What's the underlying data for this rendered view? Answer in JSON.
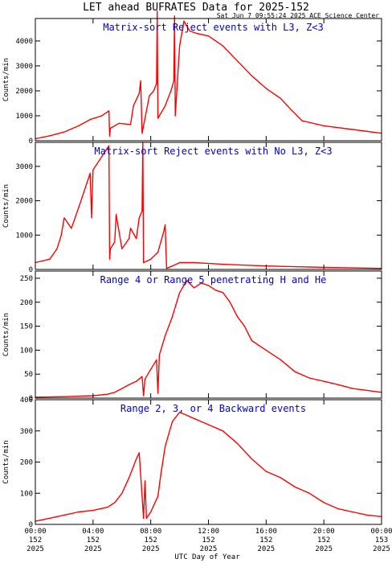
{
  "header": {
    "title": "LET ahead BUFRATES Data for 2025-152",
    "timestamp": "Sat Jun  7 09:55:24 2025 ACE Science Center"
  },
  "colors": {
    "series": "#ff0000",
    "panel_title": "#0000dd",
    "axes": "#000000",
    "background": "#ffffff"
  },
  "chart_data": [
    {
      "type": "line",
      "title": "Matrix-sort Reject events with L3, Z<3",
      "ylabel": "Counts/min",
      "xlim": [
        0,
        24
      ],
      "ylim": [
        0,
        4900
      ],
      "yticks": [
        0,
        1000,
        2000,
        3000,
        4000
      ],
      "grid": false,
      "series": [
        {
          "x": [
            0,
            1,
            2,
            3,
            3.8,
            4.6,
            5.1,
            5.15,
            5.2,
            5.8,
            6.6,
            6.8,
            7.2,
            7.3,
            7.4,
            7.9,
            8.2,
            8.4,
            8.45,
            8.5,
            8.8,
            9.0,
            9.4,
            9.6,
            9.65,
            9.7,
            10.0,
            10.3,
            10.7,
            11.2,
            12.0,
            13.0,
            14.0,
            15.0,
            16.0,
            17.0,
            17.8,
            18.5,
            20.0,
            22.0,
            24.0
          ],
          "values": [
            80,
            200,
            350,
            600,
            850,
            1000,
            1200,
            180,
            500,
            700,
            650,
            1400,
            1900,
            2400,
            300,
            1800,
            2000,
            2300,
            5200,
            900,
            1200,
            1400,
            2000,
            2400,
            5000,
            1000,
            3800,
            4800,
            4400,
            4300,
            4200,
            3800,
            3200,
            2600,
            2100,
            1700,
            1200,
            800,
            600,
            450,
            300
          ]
        }
      ]
    },
    {
      "type": "line",
      "title": "Matrix-sort Reject events with No L3, Z<3",
      "ylabel": "Counts/min",
      "xlim": [
        0,
        24
      ],
      "ylim": [
        0,
        3700
      ],
      "yticks": [
        0,
        1000,
        2000,
        3000
      ],
      "grid": false,
      "series": [
        {
          "x": [
            0,
            1,
            1.5,
            1.8,
            2.0,
            2.5,
            3.0,
            3.4,
            3.8,
            3.9,
            4.0,
            5.1,
            5.15,
            5.2,
            5.5,
            5.6,
            6.0,
            6.5,
            6.6,
            7.0,
            7.2,
            7.4,
            7.45,
            7.5,
            8.0,
            8.5,
            8.9,
            9.0,
            9.1,
            9.5,
            10.0,
            11.0,
            13.0,
            16.0,
            20.0,
            24.0
          ],
          "values": [
            200,
            300,
            600,
            1000,
            1500,
            1200,
            1800,
            2300,
            2800,
            1500,
            2900,
            3600,
            300,
            600,
            800,
            1600,
            600,
            900,
            1200,
            900,
            1500,
            1700,
            3700,
            200,
            300,
            500,
            1100,
            1300,
            30,
            100,
            200,
            200,
            150,
            100,
            60,
            30
          ]
        }
      ]
    },
    {
      "type": "line",
      "title": "Range 4 or Range 5 penetrating H and He",
      "ylabel": "Counts/min",
      "xlim": [
        0,
        24
      ],
      "ylim": [
        0,
        265
      ],
      "yticks": [
        0,
        50,
        100,
        150,
        200,
        250
      ],
      "grid": false,
      "series": [
        {
          "x": [
            0,
            2,
            3,
            4,
            5,
            5.5,
            6,
            6.5,
            7,
            7.4,
            7.5,
            7.6,
            8.0,
            8.4,
            8.5,
            8.6,
            9.0,
            9.5,
            10,
            10.5,
            11,
            11.5,
            12,
            12.5,
            13,
            13.5,
            14,
            14.5,
            15,
            16,
            17,
            18,
            19,
            20,
            21,
            22,
            24
          ],
          "values": [
            2,
            3,
            4,
            5,
            8,
            12,
            20,
            28,
            35,
            45,
            5,
            40,
            60,
            80,
            10,
            90,
            130,
            170,
            220,
            245,
            230,
            240,
            235,
            225,
            220,
            200,
            170,
            150,
            120,
            100,
            80,
            55,
            42,
            35,
            28,
            20,
            12
          ]
        }
      ]
    },
    {
      "type": "line",
      "title": "Range 2, 3, or 4 Backward events",
      "ylabel": "Counts/min",
      "xlim": [
        0,
        24
      ],
      "ylim": [
        0,
        400
      ],
      "yticks": [
        0,
        100,
        200,
        300,
        400
      ],
      "grid": false,
      "series": [
        {
          "x": [
            0,
            1,
            2,
            3,
            4,
            4.5,
            5,
            5.5,
            6,
            6.5,
            7,
            7.2,
            7.5,
            7.6,
            7.7,
            8.0,
            8.5,
            8.7,
            9.0,
            9.5,
            10,
            10.5,
            11,
            11.5,
            12,
            13,
            14,
            15,
            16,
            17,
            18,
            19,
            20,
            21,
            22,
            23,
            24
          ],
          "values": [
            10,
            20,
            30,
            40,
            45,
            50,
            55,
            70,
            100,
            150,
            210,
            230,
            20,
            140,
            20,
            40,
            90,
            160,
            250,
            330,
            360,
            350,
            340,
            330,
            320,
            300,
            260,
            210,
            170,
            150,
            120,
            100,
            70,
            50,
            40,
            30,
            25
          ]
        }
      ]
    }
  ],
  "x_axis": {
    "xlabel": "UTC Day of Year",
    "ticks": [
      {
        "x": 0,
        "time": "00:00",
        "doy": "152",
        "year": "2025"
      },
      {
        "x": 4,
        "time": "04:00",
        "doy": "152",
        "year": "2025"
      },
      {
        "x": 8,
        "time": "08:00",
        "doy": "152",
        "year": "2025"
      },
      {
        "x": 12,
        "time": "12:00",
        "doy": "152",
        "year": "2025"
      },
      {
        "x": 16,
        "time": "16:00",
        "doy": "152",
        "year": "2025"
      },
      {
        "x": 20,
        "time": "20:00",
        "doy": "152",
        "year": "2025"
      },
      {
        "x": 24,
        "time": "00:00",
        "doy": "153",
        "year": "2025"
      }
    ]
  }
}
